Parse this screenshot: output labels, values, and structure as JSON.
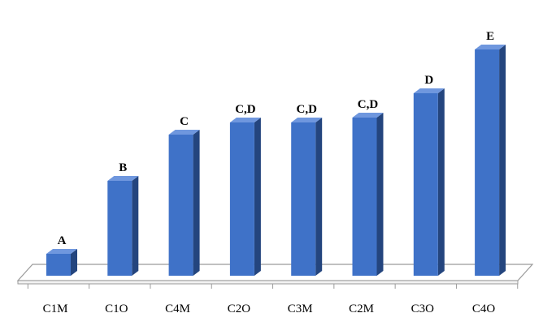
{
  "chart_data": {
    "type": "bar",
    "categories": [
      "C1M",
      "C1O",
      "C4M",
      "C2O",
      "C3M",
      "C2M",
      "C3O",
      "C4O"
    ],
    "values": [
      0.45,
      1.95,
      2.9,
      3.15,
      3.15,
      3.25,
      3.75,
      4.65
    ],
    "data_labels": [
      "A",
      "B",
      "C",
      "C,D",
      "C,D",
      "C,D",
      "D",
      "E"
    ],
    "ylim": [
      0,
      5
    ],
    "title": "",
    "xlabel": "",
    "ylabel": "",
    "grid": false,
    "legend": "none",
    "style": "3d-column",
    "colors": {
      "bar_front": "#3f72c8",
      "bar_side": "#24457e",
      "bar_top": "#6f97de",
      "floor_stroke": "#9a9a9a",
      "floor_fill": "#ffffff"
    }
  }
}
